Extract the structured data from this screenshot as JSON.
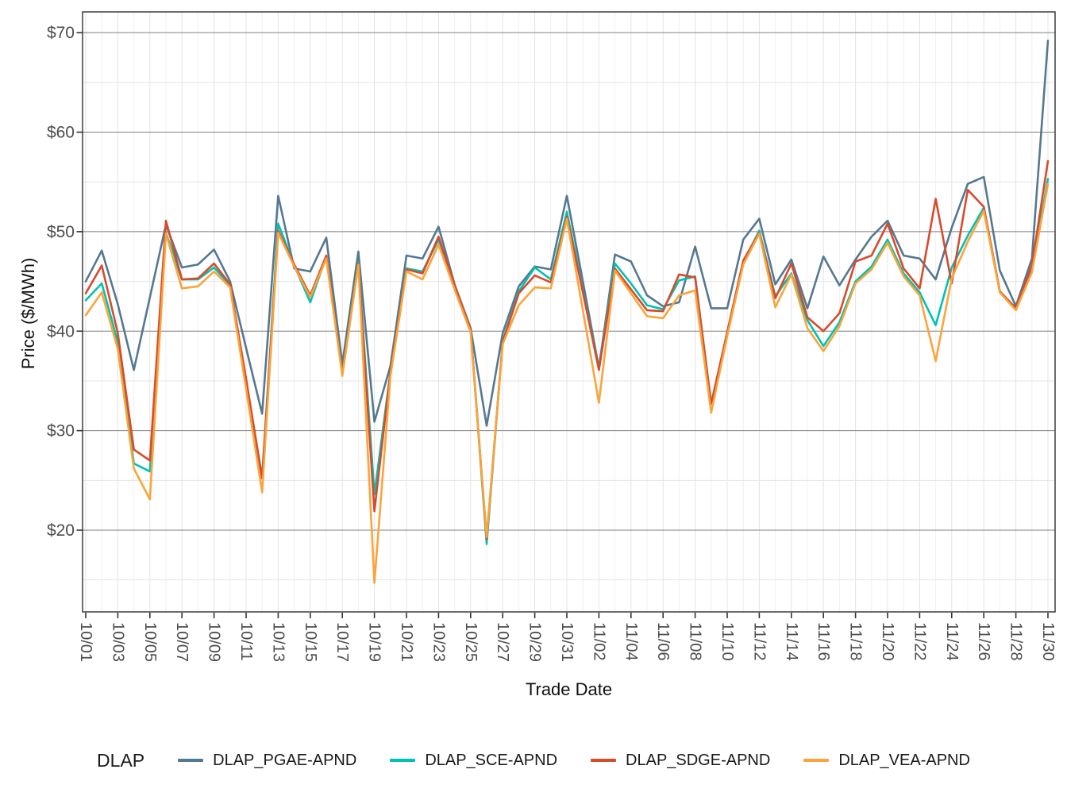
{
  "chart_data": {
    "type": "line",
    "title": "",
    "xlabel": "Trade Date",
    "ylabel": "Price ($/MWh)",
    "legend": {
      "title": "DLAP",
      "position": "bottom"
    },
    "grid": "on",
    "x_tick_every": 2,
    "ylim": [
      11.8,
      72.1
    ],
    "y_ticks": {
      "values": [
        20,
        30,
        40,
        50,
        60,
        70
      ],
      "labels": [
        "$20",
        "$30",
        "$40",
        "$50",
        "$60",
        "$70"
      ]
    },
    "y_minor_ticks": [
      15,
      25,
      35,
      45,
      55,
      65
    ],
    "x": [
      "10/01",
      "10/02",
      "10/03",
      "10/04",
      "10/05",
      "10/06",
      "10/07",
      "10/08",
      "10/09",
      "10/10",
      "10/11",
      "10/12",
      "10/13",
      "10/14",
      "10/15",
      "10/16",
      "10/17",
      "10/18",
      "10/19",
      "10/20",
      "10/21",
      "10/22",
      "10/23",
      "10/24",
      "10/25",
      "10/26",
      "10/27",
      "10/28",
      "10/29",
      "10/30",
      "10/31",
      "11/01",
      "11/02",
      "11/03",
      "11/04",
      "11/05",
      "11/06",
      "11/07",
      "11/08",
      "11/09",
      "11/10",
      "11/11",
      "11/12",
      "11/13",
      "11/14",
      "11/15",
      "11/16",
      "11/17",
      "11/18",
      "11/19",
      "11/20",
      "11/21",
      "11/22",
      "11/23",
      "11/24",
      "11/25",
      "11/26",
      "11/27",
      "11/28",
      "11/29",
      "11/30"
    ],
    "series": [
      {
        "name": "DLAP_PGAE-APND",
        "color": "#557891",
        "values": [
          45.0,
          48.1,
          42.7,
          36.1,
          43.4,
          50.7,
          46.4,
          46.7,
          48.2,
          45.0,
          38.3,
          31.7,
          53.6,
          46.3,
          46.0,
          49.4,
          36.7,
          48.0,
          30.9,
          36.5,
          47.6,
          47.3,
          50.5,
          44.7,
          40.3,
          30.5,
          39.8,
          44.5,
          46.5,
          46.2,
          53.6,
          45.0,
          36.3,
          47.7,
          47.0,
          43.6,
          42.5,
          42.9,
          48.5,
          42.3,
          42.3,
          49.2,
          51.3,
          44.7,
          47.2,
          42.3,
          47.5,
          44.6,
          47.2,
          49.5,
          51.1,
          47.6,
          47.3,
          45.2,
          50.4,
          54.8,
          55.5,
          46.1,
          42.5,
          47.3,
          69.2
        ]
      },
      {
        "name": "DLAP_SCE-APND",
        "color": "#00c2b2",
        "values": [
          43.1,
          44.8,
          38.9,
          26.7,
          25.9,
          49.9,
          45.2,
          45.2,
          46.4,
          44.6,
          35.0,
          25.3,
          50.8,
          46.6,
          42.9,
          47.5,
          35.8,
          46.9,
          23.6,
          35.9,
          46.3,
          46.0,
          49.2,
          44.6,
          40.2,
          18.6,
          39.0,
          44.0,
          46.4,
          45.2,
          52.0,
          44.1,
          36.2,
          46.8,
          44.8,
          42.6,
          42.2,
          45.1,
          45.5,
          32.7,
          39.8,
          46.9,
          50.1,
          43.5,
          45.8,
          41.1,
          38.5,
          40.9,
          45.0,
          46.5,
          49.2,
          45.8,
          43.9,
          40.6,
          46.4,
          49.6,
          52.4,
          44.0,
          42.3,
          46.1,
          55.3
        ]
      },
      {
        "name": "DLAP_SDGE-APND",
        "color": "#d74b2d",
        "values": [
          43.8,
          46.6,
          39.8,
          28.1,
          27.0,
          51.1,
          45.2,
          45.3,
          46.8,
          44.7,
          35.2,
          25.2,
          50.1,
          46.7,
          43.6,
          47.6,
          35.7,
          46.8,
          21.9,
          35.9,
          46.2,
          45.8,
          49.5,
          44.6,
          40.2,
          19.1,
          38.9,
          43.8,
          45.6,
          44.9,
          51.5,
          43.9,
          36.1,
          46.3,
          44.2,
          42.1,
          42.0,
          45.7,
          45.4,
          32.7,
          39.9,
          47.1,
          49.9,
          43.3,
          46.8,
          41.4,
          40.0,
          41.8,
          47.0,
          47.6,
          50.8,
          46.3,
          44.3,
          53.3,
          44.8,
          54.2,
          52.5,
          44.0,
          42.3,
          46.6,
          57.1
        ]
      },
      {
        "name": "DLAP_VEA-APND",
        "color": "#faa43a",
        "values": [
          41.6,
          43.9,
          38.2,
          26.2,
          23.1,
          49.8,
          44.3,
          44.5,
          46.0,
          44.4,
          34.2,
          23.8,
          49.9,
          46.5,
          43.4,
          47.3,
          35.5,
          46.7,
          14.7,
          35.5,
          46.0,
          45.2,
          48.7,
          44.2,
          39.9,
          19.3,
          38.7,
          42.6,
          44.4,
          44.3,
          51.3,
          42.1,
          32.8,
          46.1,
          43.8,
          41.5,
          41.3,
          43.6,
          44.1,
          31.8,
          39.5,
          46.7,
          49.8,
          42.4,
          45.7,
          40.3,
          38.0,
          40.5,
          44.8,
          46.2,
          48.9,
          45.5,
          43.6,
          37.0,
          45.3,
          49.0,
          52.1,
          43.9,
          42.1,
          45.9,
          54.8
        ]
      }
    ]
  }
}
